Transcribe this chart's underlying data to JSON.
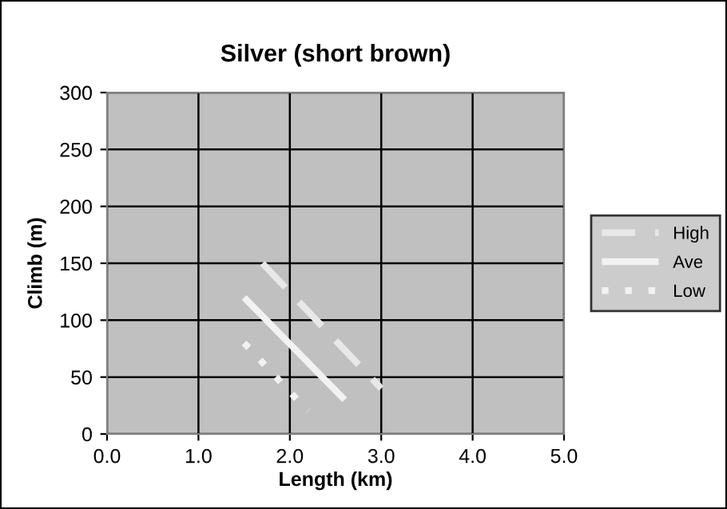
{
  "chart_data": {
    "type": "line",
    "title": "Silver (short brown)",
    "xlabel": "Length (km)",
    "ylabel": "Climb (m)",
    "xlim": [
      0,
      5
    ],
    "xticks": [
      {
        "value": 0,
        "label": "0.0"
      },
      {
        "value": 1,
        "label": "1.0"
      },
      {
        "value": 2,
        "label": "2.0"
      },
      {
        "value": 3,
        "label": "3.0"
      },
      {
        "value": 4,
        "label": "4.0"
      },
      {
        "value": 5,
        "label": "5.0"
      }
    ],
    "ylim": [
      0,
      300
    ],
    "yticks": [
      0,
      50,
      100,
      150,
      200,
      250,
      300
    ],
    "grid": true,
    "legend": "right",
    "marker": "none",
    "series": [
      {
        "name": "High",
        "color": "#e8e8e8",
        "x": [
          1.7,
          3.0
        ],
        "values": [
          150,
          40
        ],
        "line_style": "dashed"
      },
      {
        "name": "Ave",
        "color": "#f2f2f2",
        "x": [
          1.5,
          2.6
        ],
        "values": [
          120,
          30
        ],
        "line_style": "solid"
      },
      {
        "name": "Low",
        "color": "#f2f2f2",
        "x": [
          1.5,
          2.2
        ],
        "values": [
          80,
          20
        ],
        "line_style": "dotted"
      }
    ]
  }
}
